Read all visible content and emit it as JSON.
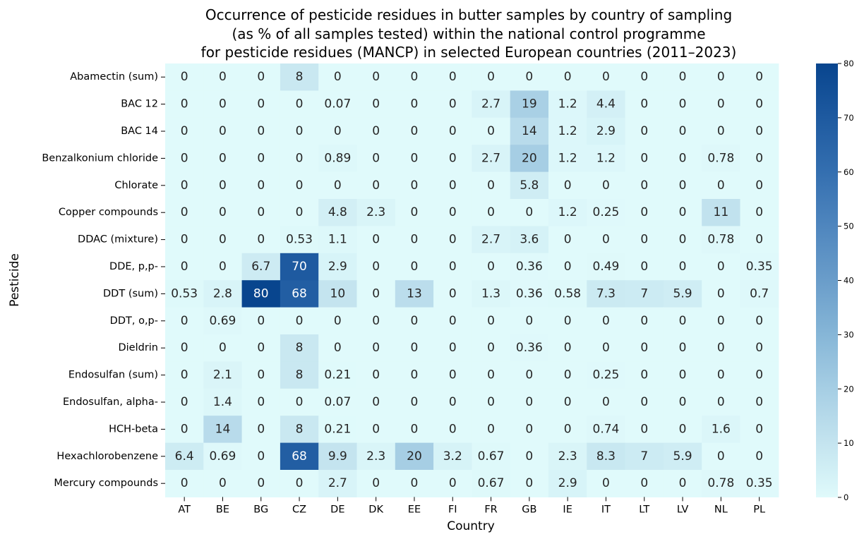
{
  "chart_data": {
    "type": "heatmap",
    "title": [
      "Occurrence of pesticide residues in butter samples by country of sampling",
      "(as % of all samples tested) within the national control programme",
      "for pesticide residues (MANCP) in selected European countries (2011–2023)"
    ],
    "xlabel": "Country",
    "ylabel": "Pesticide",
    "colormap": "Blues",
    "vmin": 0,
    "vmax": 80,
    "colorbar_ticks": [
      0,
      10,
      20,
      30,
      40,
      50,
      60,
      70,
      80
    ],
    "x": [
      "AT",
      "BE",
      "BG",
      "CZ",
      "DE",
      "DK",
      "EE",
      "FI",
      "FR",
      "GB",
      "IE",
      "IT",
      "LT",
      "LV",
      "NL",
      "PL"
    ],
    "y": [
      "Abamectin (sum)",
      "BAC 12",
      "BAC 14",
      "Benzalkonium chloride",
      "Chlorate",
      "Copper compounds",
      "DDAC (mixture)",
      "DDE, p,p-",
      "DDT (sum)",
      "DDT, o,p-",
      "Dieldrin",
      "Endosulfan (sum)",
      "Endosulfan, alpha-",
      "HCH-beta",
      "Hexachlorobenzene",
      "Mercury compounds"
    ],
    "values": [
      [
        "0",
        "0",
        "0",
        "8",
        "0",
        "0",
        "0",
        "0",
        "0",
        "0",
        "0",
        "0",
        "0",
        "0",
        "0",
        "0"
      ],
      [
        "0",
        "0",
        "0",
        "0",
        "0.07",
        "0",
        "0",
        "0",
        "2.7",
        "19",
        "1.2",
        "4.4",
        "0",
        "0",
        "0",
        "0"
      ],
      [
        "0",
        "0",
        "0",
        "0",
        "0",
        "0",
        "0",
        "0",
        "0",
        "14",
        "1.2",
        "2.9",
        "0",
        "0",
        "0",
        "0"
      ],
      [
        "0",
        "0",
        "0",
        "0",
        "0.89",
        "0",
        "0",
        "0",
        "2.7",
        "20",
        "1.2",
        "1.2",
        "0",
        "0",
        "0.78",
        "0"
      ],
      [
        "0",
        "0",
        "0",
        "0",
        "0",
        "0",
        "0",
        "0",
        "0",
        "5.8",
        "0",
        "0",
        "0",
        "0",
        "0",
        "0"
      ],
      [
        "0",
        "0",
        "0",
        "0",
        "4.8",
        "2.3",
        "0",
        "0",
        "0",
        "0",
        "1.2",
        "0.25",
        "0",
        "0",
        "11",
        "0"
      ],
      [
        "0",
        "0",
        "0",
        "0.53",
        "1.1",
        "0",
        "0",
        "0",
        "2.7",
        "3.6",
        "0",
        "0",
        "0",
        "0",
        "0.78",
        "0"
      ],
      [
        "0",
        "0",
        "6.7",
        "70",
        "2.9",
        "0",
        "0",
        "0",
        "0",
        "0.36",
        "0",
        "0.49",
        "0",
        "0",
        "0",
        "0.35"
      ],
      [
        "0.53",
        "2.8",
        "80",
        "68",
        "10",
        "0",
        "13",
        "0",
        "1.3",
        "0.36",
        "0.58",
        "7.3",
        "7",
        "5.9",
        "0",
        "0.7"
      ],
      [
        "0",
        "0.69",
        "0",
        "0",
        "0",
        "0",
        "0",
        "0",
        "0",
        "0",
        "0",
        "0",
        "0",
        "0",
        "0",
        "0"
      ],
      [
        "0",
        "0",
        "0",
        "8",
        "0",
        "0",
        "0",
        "0",
        "0",
        "0.36",
        "0",
        "0",
        "0",
        "0",
        "0",
        "0"
      ],
      [
        "0",
        "2.1",
        "0",
        "8",
        "0.21",
        "0",
        "0",
        "0",
        "0",
        "0",
        "0",
        "0.25",
        "0",
        "0",
        "0",
        "0"
      ],
      [
        "0",
        "1.4",
        "0",
        "0",
        "0.07",
        "0",
        "0",
        "0",
        "0",
        "0",
        "0",
        "0",
        "0",
        "0",
        "0",
        "0"
      ],
      [
        "0",
        "14",
        "0",
        "8",
        "0.21",
        "0",
        "0",
        "0",
        "0",
        "0",
        "0",
        "0.74",
        "0",
        "0",
        "1.6",
        "0"
      ],
      [
        "6.4",
        "0.69",
        "0",
        "68",
        "9.9",
        "2.3",
        "20",
        "3.2",
        "0.67",
        "0",
        "2.3",
        "8.3",
        "7",
        "5.9",
        "0",
        "0"
      ],
      [
        "0",
        "0",
        "0",
        "0",
        "2.7",
        "0",
        "0",
        "0",
        "0.67",
        "0",
        "2.9",
        "0",
        "0",
        "0",
        "0.78",
        "0.35"
      ]
    ]
  }
}
